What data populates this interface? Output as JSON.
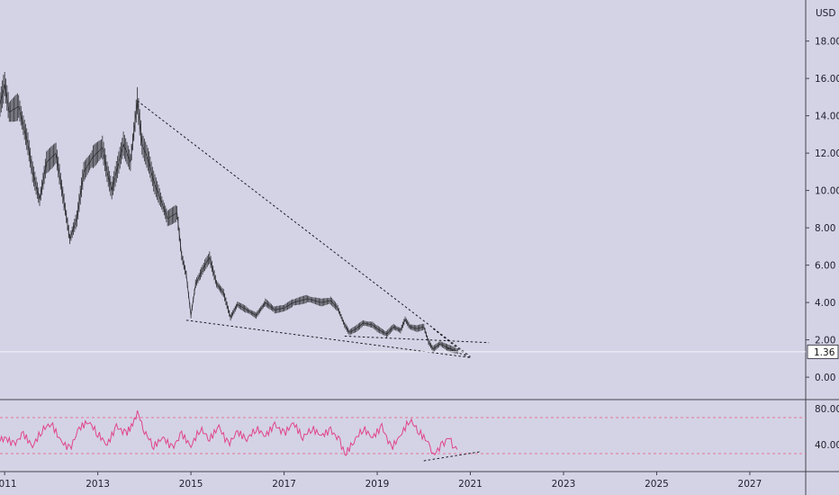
{
  "chart_data": [
    {
      "type": "line",
      "title": "",
      "currency_label": "USD",
      "x_ticks": [
        "2011",
        "2013",
        "2015",
        "2017",
        "2019",
        "2021",
        "2023",
        "2025",
        "2027"
      ],
      "xlim": [
        2010.9,
        2028.2
      ],
      "y_ticks": [
        "18.00",
        "16.00",
        "14.00",
        "12.00",
        "10.00",
        "8.00",
        "6.00",
        "4.00",
        "2.00",
        "0.00"
      ],
      "ylim": [
        -1.2,
        20.2
      ],
      "last_price": "1.36",
      "series": [
        {
          "values": [
            [
              2010.9,
              14.6
            ],
            [
              2011.0,
              15.7
            ],
            [
              2011.1,
              14.2
            ],
            [
              2011.3,
              14.5
            ],
            [
              2011.5,
              12.5
            ],
            [
              2011.6,
              11.0
            ],
            [
              2011.75,
              9.5
            ],
            [
              2011.9,
              11.5
            ],
            [
              2012.1,
              12.0
            ],
            [
              2012.2,
              10.5
            ],
            [
              2012.3,
              9.0
            ],
            [
              2012.4,
              7.4
            ],
            [
              2012.55,
              8.5
            ],
            [
              2012.7,
              11.0
            ],
            [
              2012.9,
              11.8
            ],
            [
              2013.1,
              12.3
            ],
            [
              2013.2,
              11.0
            ],
            [
              2013.3,
              10.0
            ],
            [
              2013.45,
              11.5
            ],
            [
              2013.55,
              12.5
            ],
            [
              2013.7,
              11.5
            ],
            [
              2013.85,
              14.8
            ],
            [
              2013.95,
              12.5
            ],
            [
              2014.1,
              11.5
            ],
            [
              2014.2,
              10.5
            ],
            [
              2014.35,
              9.5
            ],
            [
              2014.5,
              8.5
            ],
            [
              2014.7,
              8.8
            ],
            [
              2014.8,
              6.5
            ],
            [
              2014.9,
              5.5
            ],
            [
              2015.0,
              3.3
            ],
            [
              2015.1,
              5.0
            ],
            [
              2015.2,
              5.5
            ],
            [
              2015.3,
              6.0
            ],
            [
              2015.4,
              6.4
            ],
            [
              2015.55,
              5.0
            ],
            [
              2015.7,
              4.5
            ],
            [
              2015.85,
              3.2
            ],
            [
              2016.0,
              3.9
            ],
            [
              2016.2,
              3.6
            ],
            [
              2016.4,
              3.3
            ],
            [
              2016.6,
              4.0
            ],
            [
              2016.8,
              3.6
            ],
            [
              2017.0,
              3.7
            ],
            [
              2017.2,
              4.0
            ],
            [
              2017.5,
              4.2
            ],
            [
              2017.8,
              4.0
            ],
            [
              2018.0,
              4.1
            ],
            [
              2018.15,
              3.7
            ],
            [
              2018.3,
              2.8
            ],
            [
              2018.4,
              2.4
            ],
            [
              2018.55,
              2.6
            ],
            [
              2018.7,
              2.9
            ],
            [
              2018.9,
              2.8
            ],
            [
              2019.0,
              2.6
            ],
            [
              2019.2,
              2.3
            ],
            [
              2019.35,
              2.7
            ],
            [
              2019.5,
              2.5
            ],
            [
              2019.6,
              3.1
            ],
            [
              2019.7,
              2.7
            ],
            [
              2019.85,
              2.6
            ],
            [
              2020.0,
              2.7
            ],
            [
              2020.1,
              1.9
            ],
            [
              2020.2,
              1.5
            ],
            [
              2020.35,
              1.8
            ],
            [
              2020.5,
              1.6
            ],
            [
              2020.65,
              1.45
            ],
            [
              2020.75,
              1.36
            ]
          ]
        }
      ],
      "trendlines": [
        {
          "from": [
            2013.85,
            14.8
          ],
          "to": [
            2021.0,
            1.1
          ]
        },
        {
          "from": [
            2014.9,
            3.05
          ],
          "to": [
            2021.0,
            1.05
          ]
        },
        {
          "from": [
            2018.3,
            2.2
          ],
          "to": [
            2021.4,
            1.85
          ]
        },
        {
          "from": [
            2020.2,
            2.6
          ],
          "to": [
            2020.9,
            1.2
          ]
        },
        {
          "from": [
            2020.5,
            1.55
          ],
          "to": [
            2021.0,
            1.05
          ]
        }
      ]
    },
    {
      "type": "line",
      "title": "",
      "y_ticks": [
        "80.00",
        "40.00"
      ],
      "ylim": [
        10,
        90
      ],
      "levels": [
        70,
        30
      ],
      "series": [
        {
          "values": [
            [
              2010.9,
              45
            ],
            [
              2011.0,
              48
            ],
            [
              2011.2,
              40
            ],
            [
              2011.4,
              52
            ],
            [
              2011.6,
              38
            ],
            [
              2011.8,
              56
            ],
            [
              2012.0,
              64
            ],
            [
              2012.2,
              44
            ],
            [
              2012.4,
              35
            ],
            [
              2012.6,
              58
            ],
            [
              2012.8,
              66
            ],
            [
              2013.0,
              52
            ],
            [
              2013.2,
              40
            ],
            [
              2013.4,
              60
            ],
            [
              2013.6,
              52
            ],
            [
              2013.75,
              62
            ],
            [
              2013.85,
              77
            ],
            [
              2014.0,
              55
            ],
            [
              2014.2,
              38
            ],
            [
              2014.4,
              48
            ],
            [
              2014.6,
              36
            ],
            [
              2014.8,
              52
            ],
            [
              2015.0,
              38
            ],
            [
              2015.2,
              58
            ],
            [
              2015.4,
              46
            ],
            [
              2015.6,
              60
            ],
            [
              2015.8,
              40
            ],
            [
              2016.0,
              54
            ],
            [
              2016.2,
              46
            ],
            [
              2016.4,
              58
            ],
            [
              2016.6,
              50
            ],
            [
              2016.8,
              62
            ],
            [
              2017.0,
              52
            ],
            [
              2017.2,
              64
            ],
            [
              2017.4,
              48
            ],
            [
              2017.6,
              58
            ],
            [
              2017.8,
              50
            ],
            [
              2018.0,
              56
            ],
            [
              2018.2,
              44
            ],
            [
              2018.3,
              28
            ],
            [
              2018.5,
              44
            ],
            [
              2018.7,
              58
            ],
            [
              2018.9,
              48
            ],
            [
              2019.1,
              60
            ],
            [
              2019.3,
              36
            ],
            [
              2019.5,
              50
            ],
            [
              2019.7,
              68
            ],
            [
              2019.9,
              54
            ],
            [
              2020.1,
              42
            ],
            [
              2020.2,
              28
            ],
            [
              2020.4,
              40
            ],
            [
              2020.55,
              48
            ],
            [
              2020.65,
              36
            ],
            [
              2020.75,
              38
            ]
          ]
        }
      ],
      "trendlines": [
        {
          "from": [
            2020.0,
            22
          ],
          "to": [
            2021.2,
            32
          ]
        }
      ]
    }
  ]
}
